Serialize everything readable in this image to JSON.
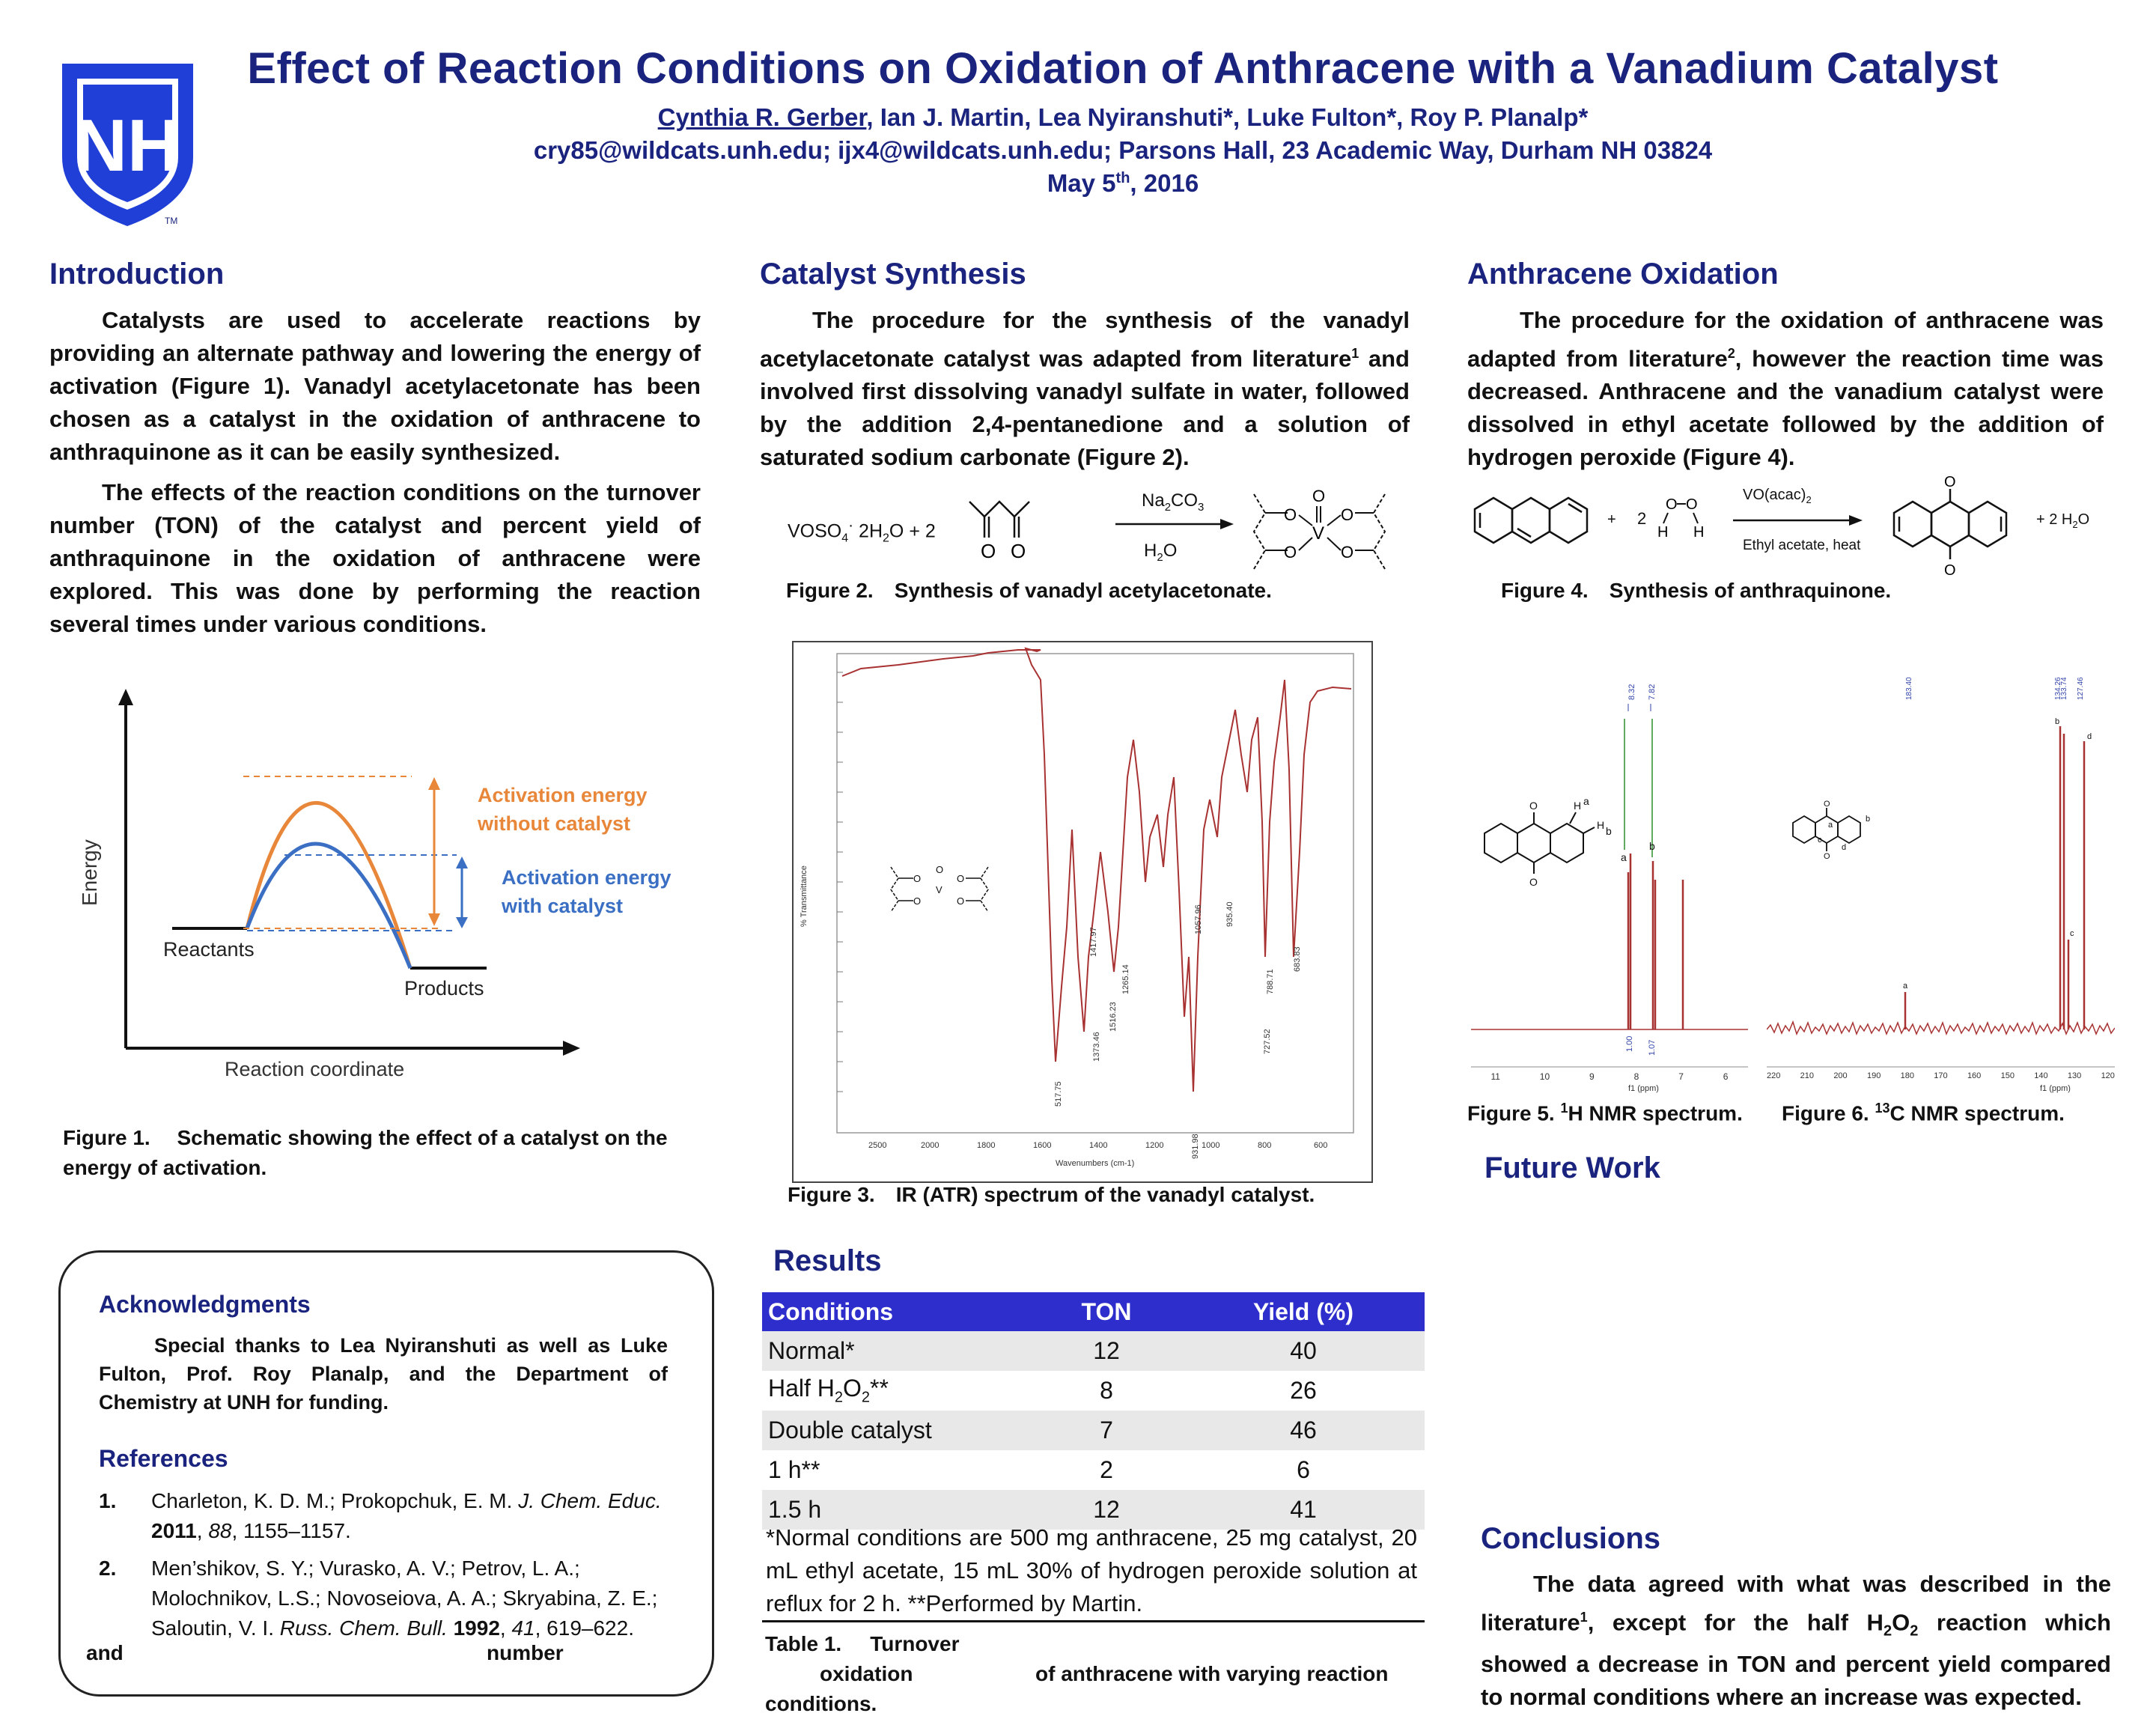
{
  "header": {
    "logo_text": "NH",
    "tm": "TM",
    "title": "Effect of Reaction Conditions on Oxidation of Anthracene with a Vanadium Catalyst",
    "author_first": "Cynthia R. Gerber",
    "authors_rest": ", Ian J. Martin, Lea Nyiranshuti*, Luke Fulton*, Roy P. Planalp*",
    "contact": "cry85@wildcats.unh.edu; ijx4@wildcats.unh.edu; Parsons Hall, 23 Academic Way, Durham NH 03824",
    "date_main": "May 5",
    "date_sup": "th",
    "date_year": ", 2016"
  },
  "introduction": {
    "heading": "Introduction",
    "p1": "Catalysts are used to accelerate reactions by providing an alternate pathway and lowering the energy of activation (Figure 1). Vanadyl acetylacetonate has been chosen as a catalyst in the oxidation of anthracene to anthraquinone as it can be easily synthesized.",
    "p2": "The effects of the reaction conditions on the turnover number (TON) of the catalyst and percent yield of anthraquinone in the oxidation of anthracene were explored. This was done by performing the reaction several times under various conditions."
  },
  "figure1": {
    "y_label": "Energy",
    "x_label": "Reaction coordinate",
    "reactants": "Reactants",
    "products": "Products",
    "ea_without_1": "Activation energy",
    "ea_without_2": "without catalyst",
    "ea_with_1": "Activation energy",
    "ea_with_2": "with catalyst",
    "caption_num": "Figure 1.",
    "caption_text": "Schematic showing the effect of a catalyst on the energy of activation.",
    "colors": {
      "uncatalyzed": "#e8873a",
      "catalyzed": "#3a6fc4"
    }
  },
  "catalyst_synthesis": {
    "heading": "Catalyst Synthesis",
    "p1_a": "The procedure for the synthesis of the vanadyl acetylacetonate catalyst was adapted from literature",
    "p1_sup": "1",
    "p1_b": " and involved first dissolving vanadyl sulfate in water, followed by the addition 2,4-pentanedione and a solution of saturated sodium carbonate (Figure 2).",
    "scheme_reagent": "VOSO",
    "scheme_sub4": "4",
    "scheme_dot": "·",
    "scheme_hydrate": "2H",
    "scheme_sub2": "2",
    "scheme_o": "O",
    "scheme_plus_two": "+ 2",
    "arrow_top_a": "Na",
    "arrow_top_sub2": "2",
    "arrow_top_b": "CO",
    "arrow_top_sub3": "3",
    "arrow_bot_a": "H",
    "arrow_bot_sub2": "2",
    "arrow_bot_b": "O",
    "fig2_num": "Figure 2.",
    "fig2_text": "Synthesis of vanadyl acetylacetonate.",
    "fig3_num": "Figure 3.",
    "fig3_text": "IR (ATR) spectrum of the vanadyl catalyst.",
    "ir_y_label": "% Transmittance",
    "ir_x_label": "Wavenumbers (cm-1)",
    "ir_peaks": [
      "517.75",
      "1373.46",
      "1516.23",
      "1265.14",
      "1417.97",
      "1057.96",
      "931.98",
      "935.40",
      "727.52",
      "788.71",
      "683.83"
    ],
    "ir_x_ticks": [
      "2500",
      "2000",
      "1800",
      "1600",
      "1400",
      "1200",
      "1000",
      "800",
      "600"
    ]
  },
  "anthracene_oxidation": {
    "heading": "Anthracene Oxidation",
    "p1_a": "The procedure for the oxidation of anthracene was adapted from literature",
    "p1_sup": "2",
    "p1_b": ", however the reaction time was decreased. Anthracene and the vanadium catalyst were dissolved in ethyl acetate followed by the addition of hydrogen peroxide (Figure 4).",
    "scheme_plus1": "+",
    "scheme_two": "2",
    "arrow_top_a": "VO(acac)",
    "arrow_top_sub2": "2",
    "arrow_bottom": "Ethyl acetate, heat",
    "product_plus_water": "+ 2 H",
    "product_sub2": "2",
    "product_o": "O",
    "fig4_num": "Figure 4.",
    "fig4_text": "Synthesis of anthraquinone.",
    "fig5_a": "Figure 5. ",
    "fig5_sup": "1",
    "fig5_b": "H NMR spectrum.",
    "fig6_a": "Figure 6. ",
    "fig6_sup": "13",
    "fig6_b": "C NMR spectrum.",
    "h_nmr_ticks": [
      "11",
      "10",
      "9",
      "8",
      "7",
      "6"
    ],
    "h_nmr_xlabel": "f1 (ppm)",
    "h_nmr_peaks": [
      "8.32",
      "7.82"
    ],
    "c_nmr_ticks": [
      "220",
      "210",
      "200",
      "190",
      "180",
      "170",
      "160",
      "150",
      "140",
      "130",
      "120"
    ],
    "c_nmr_xlabel": "f1 (ppm)"
  },
  "future_work": {
    "heading": "Future Work"
  },
  "results": {
    "heading": "Results",
    "columns": [
      "Conditions",
      "TON",
      "Yield (%)"
    ],
    "rows": [
      {
        "cond": "Normal*",
        "ton": "12",
        "yield": "40"
      },
      {
        "cond_a": "Half H",
        "cond_sub": "2",
        "cond_b": "O",
        "cond_sub2": "2",
        "cond_c": "**",
        "ton": "8",
        "yield": "26"
      },
      {
        "cond": "Double catalyst",
        "ton": "7",
        "yield": "46"
      },
      {
        "cond": "1 h**",
        "ton": "2",
        "yield": "6"
      },
      {
        "cond": "1.5 h",
        "ton": "12",
        "yield": "41"
      }
    ],
    "footnote": "*Normal conditions are 500 mg anthracene, 25 mg catalyst, 20 mL ethyl acetate, 15 mL 30% of hydrogen peroxide solution at reflux for 2 h. **Performed by Martin.",
    "table_cap_a": "Table 1.",
    "table_cap_b": "Turnover",
    "table_cap_c": "oxidation",
    "table_cap_d": "of anthracene with varying reaction",
    "table_cap_e": "conditions.",
    "table_cap_f": "and",
    "table_cap_g": "number"
  },
  "conclusions": {
    "heading": "Conclusions",
    "p_a": "The data agreed with what was described in the literature",
    "p_sup": "1",
    "p_b": ", except for the half H",
    "p_sub1": "2",
    "p_c": "O",
    "p_sub2": "2",
    "p_d": " reaction which showed a decrease in TON and percent yield compared to normal conditions where an increase was expected."
  },
  "acknowledgments": {
    "heading": "Acknowledgments",
    "text": "Special thanks to Lea Nyiranshuti as well as Luke Fulton, Prof. Roy Planalp, and the Department of Chemistry at UNH for funding."
  },
  "references": {
    "heading": "References",
    "r1_num": "1.",
    "r1_a": "Charleton, K. D. M.; Prokopchuk, E. M. ",
    "r1_journal": "J. Chem. Educ.",
    "r1_year": "2011",
    "r1_vol": "88",
    "r1_pages": ", 1155–1157.",
    "r2_num": "2.",
    "r2_a": "Men’shikov, S. Y.; Vurasko, A. V.; Petrov, L. A.; Molochnikov, L.S.; Novoseiova, A. A.; Skryabina, Z. E.; Saloutin, V. I. ",
    "r2_journal": "Russ. Chem. Bull.",
    "r2_year": "1992",
    "r2_vol": "41",
    "r2_pages": ", 619–622."
  }
}
